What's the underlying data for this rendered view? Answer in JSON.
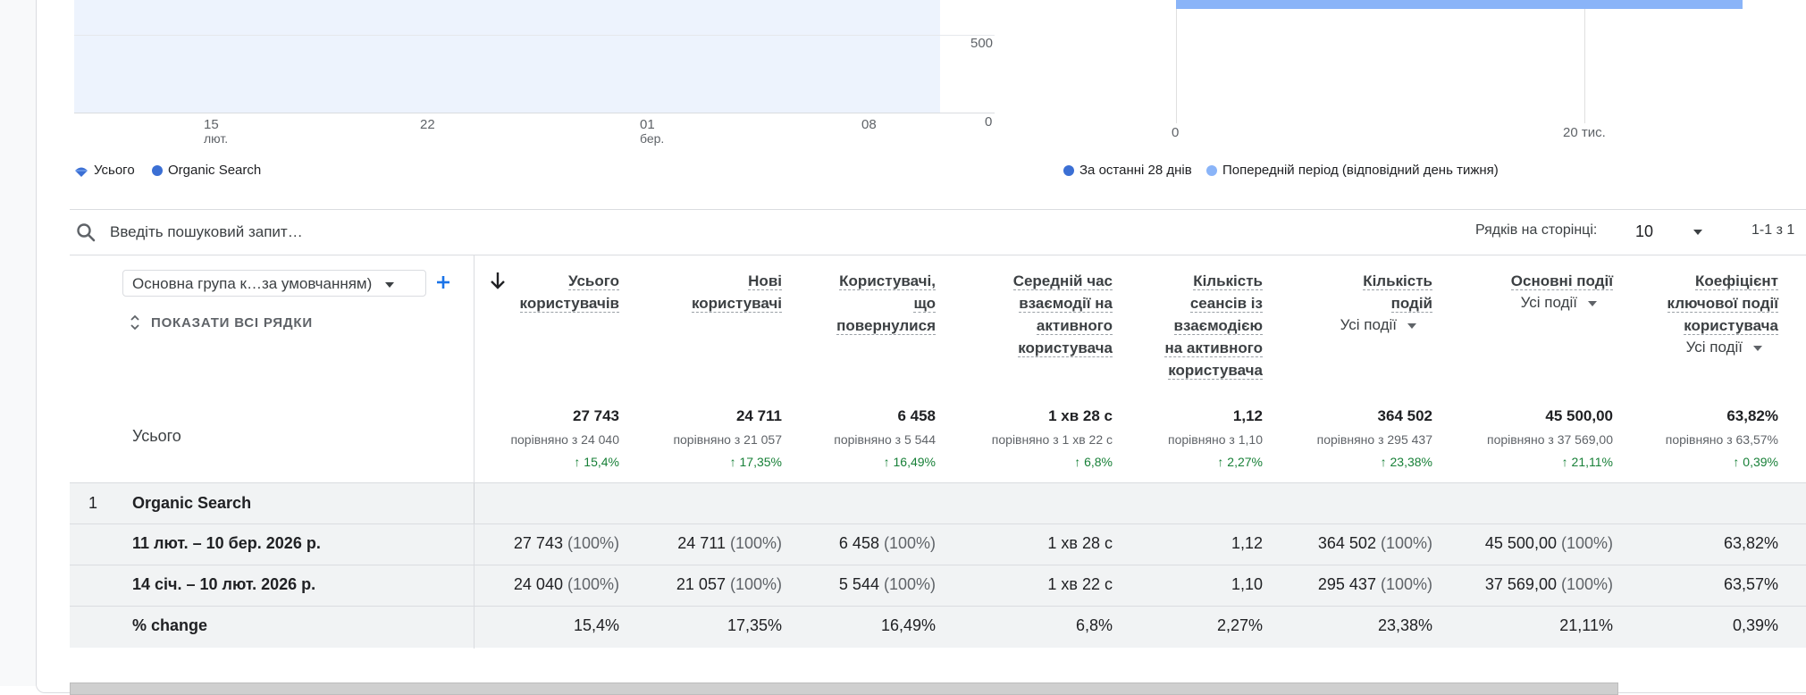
{
  "colors": {
    "accent": "#4285f4",
    "organic": "#3b6fd4",
    "previous": "#8ab4f8",
    "plot_fill": "#edf3fd",
    "positive": "#188038"
  },
  "line_chart": {
    "y_ticks": [
      "500",
      "0"
    ],
    "x_ticks": [
      {
        "label": "15",
        "sub": "лют."
      },
      {
        "label": "22",
        "sub": ""
      },
      {
        "label": "01",
        "sub": "бер."
      },
      {
        "label": "08",
        "sub": ""
      }
    ],
    "legend": [
      {
        "label": "Усього",
        "icon": "total-icon"
      },
      {
        "label": "Organic Search",
        "icon": "dot-icon"
      }
    ]
  },
  "bar_chart": {
    "x_ticks": [
      "0",
      "20 тис."
    ],
    "bars": [
      {
        "series": "За останні 28 днів",
        "value": 27743
      }
    ],
    "legend": [
      {
        "label": "За останні 28 днів"
      },
      {
        "label": "Попередній період (відповідний день тижня)"
      }
    ]
  },
  "chart_data": {
    "type": "bar",
    "orientation": "horizontal",
    "categories": [
      "Organic Search"
    ],
    "series": [
      {
        "name": "За останні 28 днів",
        "values": [
          27743
        ]
      }
    ],
    "x_ticks": [
      "0",
      "20 тис."
    ],
    "xlim": [
      0,
      27743
    ]
  },
  "search": {
    "placeholder": "Введіть пошуковий запит…",
    "icon": "search-icon"
  },
  "pagination": {
    "rows_label": "Рядків на сторінці:",
    "rows_value": "10",
    "range": "1-1 з 1"
  },
  "table": {
    "dimension_select": "Основна група к…за умовчанням)",
    "show_all_rows": "ПОКАЗАТИ ВСІ РЯДКИ",
    "totals_label": "Усього",
    "columns": [
      {
        "lines": [
          "Усього",
          "користувачів"
        ],
        "sub": "",
        "total": "27 743",
        "cmp": "порівняно з 24 040",
        "chg": "↑ 15,4%"
      },
      {
        "lines": [
          "Нові",
          "користувачі"
        ],
        "sub": "",
        "total": "24 711",
        "cmp": "порівняно з 21 057",
        "chg": "↑ 17,35%"
      },
      {
        "lines": [
          "Користувачі,",
          "що",
          "повернулися"
        ],
        "sub": "",
        "total": "6 458",
        "cmp": "порівняно з 5 544",
        "chg": "↑ 16,49%"
      },
      {
        "lines": [
          "Середній час",
          "взаємодії на",
          "активного",
          "користувача"
        ],
        "sub": "",
        "total": "1 хв 28 с",
        "cmp": "порівняно з 1 хв 22 с",
        "chg": "↑ 6,8%"
      },
      {
        "lines": [
          "Кількість",
          "сеансів із",
          "взаємодією",
          "на активного",
          "користувача"
        ],
        "sub": "",
        "total": "1,12",
        "cmp": "порівняно з 1,10",
        "chg": "↑ 2,27%"
      },
      {
        "lines": [
          "Кількість",
          "подій"
        ],
        "sub": "Усі події",
        "total": "364 502",
        "cmp": "порівняно з 295 437",
        "chg": "↑ 23,38%"
      },
      {
        "lines": [
          "Основні події"
        ],
        "sub": "Усі події",
        "total": "45 500,00",
        "cmp": "порівняно з 37 569,00",
        "chg": "↑ 21,11%"
      },
      {
        "lines": [
          "Коефіцієнт",
          "ключової події",
          "користувача"
        ],
        "sub": "Усі події",
        "total": "63,82%",
        "cmp": "порівняно з 63,57%",
        "chg": "↑ 0,39%"
      }
    ],
    "group_row": {
      "index": "1",
      "label": "Organic Search"
    },
    "rows": [
      {
        "label": "11 лют. – 10 бер. 2026 р.",
        "cells": [
          [
            "27 743",
            "(100%)"
          ],
          [
            "24 711",
            "(100%)"
          ],
          [
            "6 458",
            "(100%)"
          ],
          [
            "1 хв 28 с",
            ""
          ],
          [
            "1,12",
            ""
          ],
          [
            "364 502",
            "(100%)"
          ],
          [
            "45 500,00",
            "(100%)"
          ],
          [
            "63,82%",
            ""
          ]
        ]
      },
      {
        "label": "14 січ. – 10 лют. 2026 р.",
        "cells": [
          [
            "24 040",
            "(100%)"
          ],
          [
            "21 057",
            "(100%)"
          ],
          [
            "5 544",
            "(100%)"
          ],
          [
            "1 хв 22 с",
            ""
          ],
          [
            "1,10",
            ""
          ],
          [
            "295 437",
            "(100%)"
          ],
          [
            "37 569,00",
            "(100%)"
          ],
          [
            "63,57%",
            ""
          ]
        ]
      },
      {
        "label": "% change",
        "cells": [
          [
            "15,4%",
            ""
          ],
          [
            "17,35%",
            ""
          ],
          [
            "16,49%",
            ""
          ],
          [
            "6,8%",
            ""
          ],
          [
            "2,27%",
            ""
          ],
          [
            "23,38%",
            ""
          ],
          [
            "21,11%",
            ""
          ],
          [
            "0,39%",
            ""
          ]
        ]
      }
    ]
  }
}
